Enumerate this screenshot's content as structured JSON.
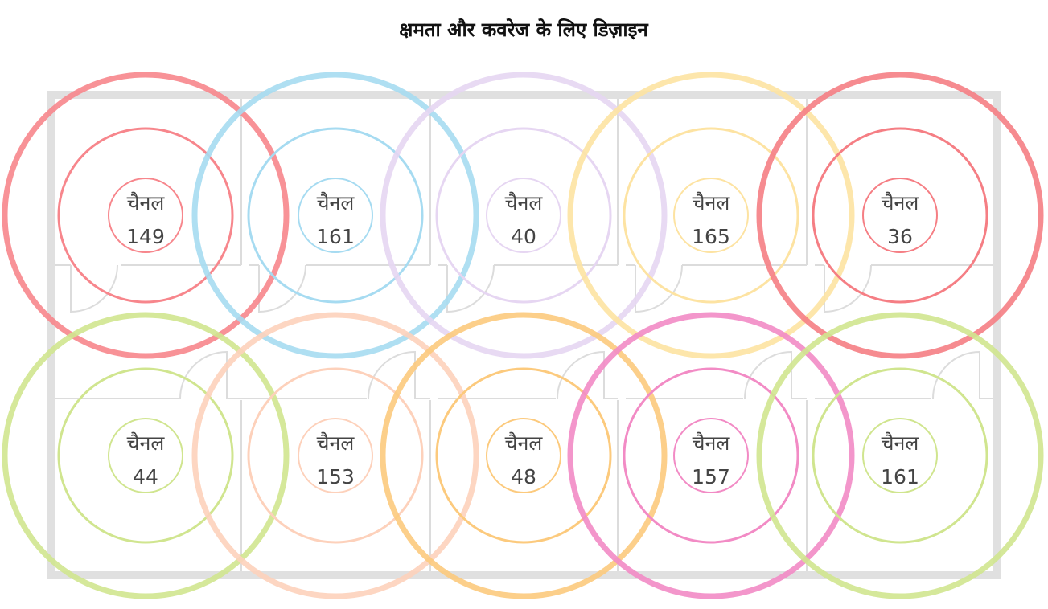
{
  "title": "क्षमता और कवरेज के लिए डिज़ाइन",
  "cells": [
    {
      "label": "चैनल",
      "channel": 149,
      "color": "#f7868c"
    },
    {
      "label": "चैनल",
      "channel": 161,
      "color": "#a6dbf1"
    },
    {
      "label": "चैनल",
      "channel": 40,
      "color": "#e6d6f2"
    },
    {
      "label": "चैनल",
      "channel": 165,
      "color": "#fde3a2"
    },
    {
      "label": "चैनल",
      "channel": 36,
      "color": "#f57e84"
    },
    {
      "label": "चैनल",
      "channel": 44,
      "color": "#d0e58f"
    },
    {
      "label": "चैनल",
      "channel": 153,
      "color": "#fdd1bb"
    },
    {
      "label": "चैनल",
      "channel": 48,
      "color": "#fcca7d"
    },
    {
      "label": "चैनल",
      "channel": 157,
      "color": "#f28bc5"
    },
    {
      "label": "चैनल",
      "channel": 161,
      "color": "#d0e58f"
    }
  ]
}
